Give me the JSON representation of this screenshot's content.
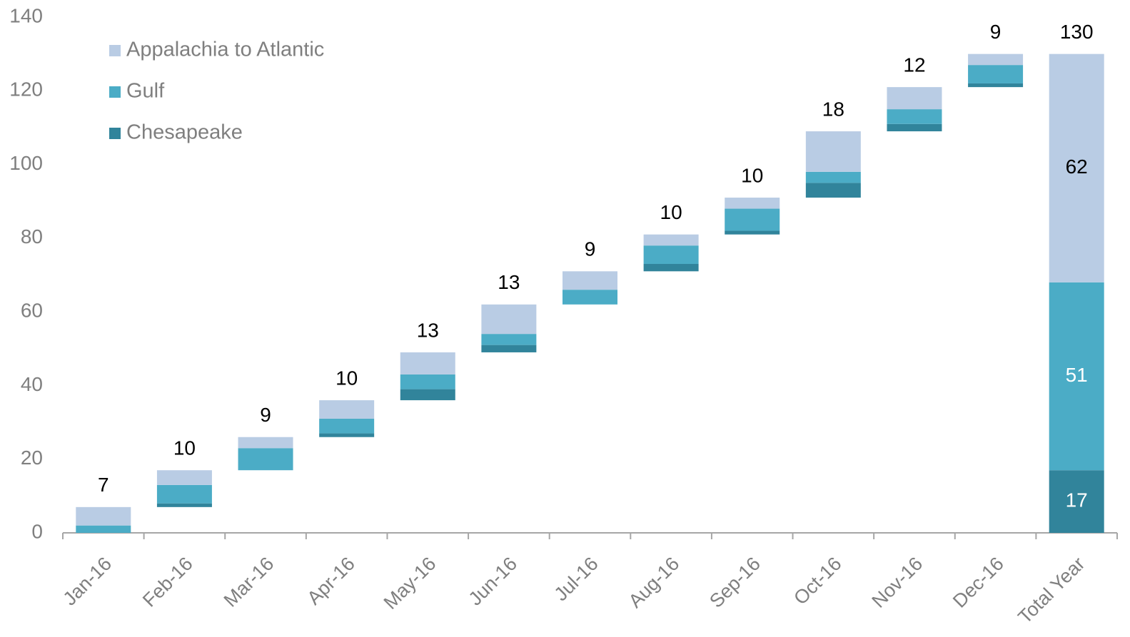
{
  "chart_data": {
    "type": "waterfall",
    "categories": [
      "Jan-16",
      "Feb-16",
      "Mar-16",
      "Apr-16",
      "May-16",
      "Jun-16",
      "Jul-16",
      "Aug-16",
      "Sep-16",
      "Oct-16",
      "Nov-16",
      "Dec-16",
      "Total Year"
    ],
    "series": [
      {
        "name": "Chesapeake",
        "color": "#31849b",
        "values": [
          0,
          1,
          0,
          1,
          3,
          2,
          0,
          2,
          1,
          4,
          2,
          1,
          17
        ]
      },
      {
        "name": "Gulf",
        "color": "#4bacc6",
        "values": [
          2,
          5,
          6,
          4,
          4,
          3,
          4,
          5,
          6,
          3,
          4,
          5,
          51
        ]
      },
      {
        "name": "Appalachia to Atlantic",
        "color": "#b9cce4",
        "values": [
          5,
          4,
          3,
          5,
          6,
          8,
          5,
          3,
          3,
          11,
          6,
          3,
          62
        ]
      }
    ],
    "totals": [
      7,
      10,
      9,
      10,
      13,
      13,
      9,
      10,
      10,
      18,
      12,
      9,
      130
    ],
    "ylim": [
      0,
      140
    ],
    "yticks": [
      0,
      20,
      40,
      60,
      80,
      100,
      120,
      140
    ],
    "legend": "top-left",
    "grid": false
  }
}
